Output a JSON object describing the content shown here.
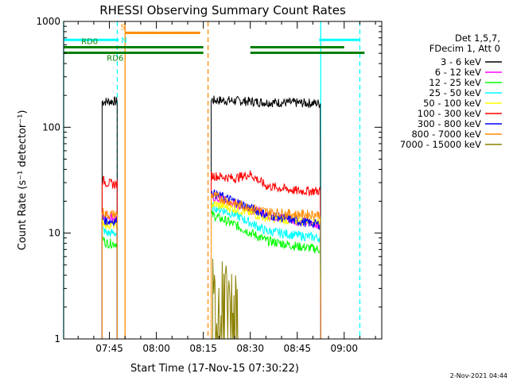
{
  "chart_data": {
    "type": "line",
    "title": "RHESSI Observing Summary Count Rates",
    "xlabel": "Start Time (17-Nov-15 07:30:22)",
    "ylabel": "Count Rate (s⁻¹ detector⁻¹)",
    "y_scale": "log",
    "ylim": [
      1,
      1000
    ],
    "xlim": [
      "07:30:22",
      "09:12:00"
    ],
    "x_ticks": [
      "07:45",
      "08:00",
      "08:15",
      "08:30",
      "08:45",
      "09:00"
    ],
    "y_ticks": [
      1,
      10,
      100,
      1000
    ],
    "legend_header": [
      "Det 1,5,7,",
      "FDecim 1, Att 0"
    ],
    "legend_position": "right",
    "timestamp": "2-Nov-2021 04:44",
    "series": [
      {
        "name": "3 - 6 keV",
        "color": "#000000",
        "segments": [
          {
            "x": [
              "07:42:40",
              "07:44",
              "07:46",
              "07:47:30"
            ],
            "y": [
              175,
              175,
              176,
              175
            ]
          },
          {
            "x": [
              "08:17:30",
              "08:25",
              "08:35",
              "08:45",
              "08:52:30"
            ],
            "y": [
              180,
              178,
              172,
              170,
              168
            ]
          }
        ]
      },
      {
        "name": "6 - 12 keV",
        "color": "#ff00ff",
        "segments": [
          {
            "x": [
              "07:42:40",
              "07:44",
              "07:46",
              "07:47:30"
            ],
            "y": [
              15,
              15,
              14,
              14
            ]
          },
          {
            "x": [
              "08:17:30",
              "08:25",
              "08:35",
              "08:45",
              "08:52:30"
            ],
            "y": [
              22,
              19,
              15,
              13,
              12
            ]
          }
        ]
      },
      {
        "name": "12 - 25 keV",
        "color": "#00ff00",
        "segments": [
          {
            "x": [
              "07:42:40",
              "07:44",
              "07:46",
              "07:47:30"
            ],
            "y": [
              9,
              8,
              8,
              8
            ]
          },
          {
            "x": [
              "08:17:30",
              "08:25",
              "08:35",
              "08:45",
              "08:52:30"
            ],
            "y": [
              15,
              12,
              8.5,
              7.5,
              7
            ]
          }
        ]
      },
      {
        "name": "25 - 50 keV",
        "color": "#00ffff",
        "segments": [
          {
            "x": [
              "07:42:40",
              "07:44",
              "07:46",
              "07:47:30"
            ],
            "y": [
              11,
              10,
              10,
              10
            ]
          },
          {
            "x": [
              "08:17:30",
              "08:25",
              "08:35",
              "08:45",
              "08:52:30"
            ],
            "y": [
              18,
              15,
              10.5,
              9.5,
              9
            ]
          }
        ]
      },
      {
        "name": "50 - 100 keV",
        "color": "#ffff00",
        "segments": [
          {
            "x": [
              "07:42:40",
              "07:44",
              "07:46",
              "07:47:30"
            ],
            "y": [
              13,
              12,
              12,
              12
            ]
          },
          {
            "x": [
              "08:17:30",
              "08:25",
              "08:35",
              "08:45",
              "08:52:30"
            ],
            "y": [
              19,
              17,
              14,
              13,
              13
            ]
          }
        ]
      },
      {
        "name": "100 - 300 keV",
        "color": "#ff0000",
        "segments": [
          {
            "x": [
              "07:42:40",
              "07:44",
              "07:46",
              "07:47:30"
            ],
            "y": [
              32,
              30,
              29,
              29
            ]
          },
          {
            "x": [
              "08:17:30",
              "08:25",
              "08:30",
              "08:35",
              "08:45",
              "08:52:30"
            ],
            "y": [
              35,
              33,
              36,
              28,
              25,
              25
            ]
          }
        ]
      },
      {
        "name": "300 - 800 keV",
        "color": "#0000ff",
        "segments": [
          {
            "x": [
              "07:42:40",
              "07:44",
              "07:46",
              "07:47:30"
            ],
            "y": [
              14,
              13,
              13,
              13
            ]
          },
          {
            "x": [
              "08:17:30",
              "08:25",
              "08:35",
              "08:45",
              "08:52:30"
            ],
            "y": [
              24,
              20,
              15,
              13,
              12
            ]
          }
        ]
      },
      {
        "name": "800 - 7000 keV",
        "color": "#ff8c00",
        "segments": [
          {
            "x": [
              "07:42:40",
              "07:44",
              "07:46",
              "07:47:30"
            ],
            "y": [
              16,
              15,
              15,
              15
            ]
          },
          {
            "x": [
              "08:17:30",
              "08:25",
              "08:35",
              "08:45",
              "08:52:30"
            ],
            "y": [
              23,
              19,
              16,
              15,
              15
            ]
          }
        ]
      },
      {
        "name": "7000 - 15000 keV",
        "color": "#8b8000",
        "segments": [
          {
            "x": [
              "08:18",
              "08:20",
              "08:22",
              "08:24",
              "08:26"
            ],
            "y": [
              2.6,
              2.2,
              2.8,
              2.0,
              1.8
            ]
          }
        ]
      }
    ],
    "state_bars": [
      {
        "label": "S",
        "color": "#ff8c00",
        "start": "07:50",
        "end": "08:14",
        "y": 780
      },
      {
        "label": "N",
        "color": "#00ffff",
        "segments": [
          [
            "07:30:22",
            "07:48"
          ],
          [
            "08:52",
            "09:05"
          ]
        ],
        "y": 670
      },
      {
        "label": "RD0",
        "color": "#008000",
        "segments": [
          [
            "07:30:22",
            "08:15"
          ],
          [
            "08:30",
            "09:00"
          ]
        ],
        "y": 570
      },
      {
        "label": "RD6",
        "color": "#008000",
        "segments": [
          [
            "07:30:22",
            "08:15"
          ],
          [
            "08:30",
            "09:06:30"
          ]
        ],
        "y": 505
      }
    ],
    "vertical_lines": [
      {
        "x": "07:30:22",
        "color": "#00ffff",
        "style": "solid"
      },
      {
        "x": "07:47:30",
        "color": "#00ffff",
        "style": "dashed"
      },
      {
        "x": "07:50",
        "color": "#ff8c00",
        "style": "solid"
      },
      {
        "x": "08:16:30",
        "color": "#ff8c00",
        "style": "dashed"
      },
      {
        "x": "08:52:30",
        "color": "#00ffff",
        "style": "solid"
      },
      {
        "x": "09:05",
        "color": "#00ffff",
        "style": "dashed"
      }
    ]
  }
}
